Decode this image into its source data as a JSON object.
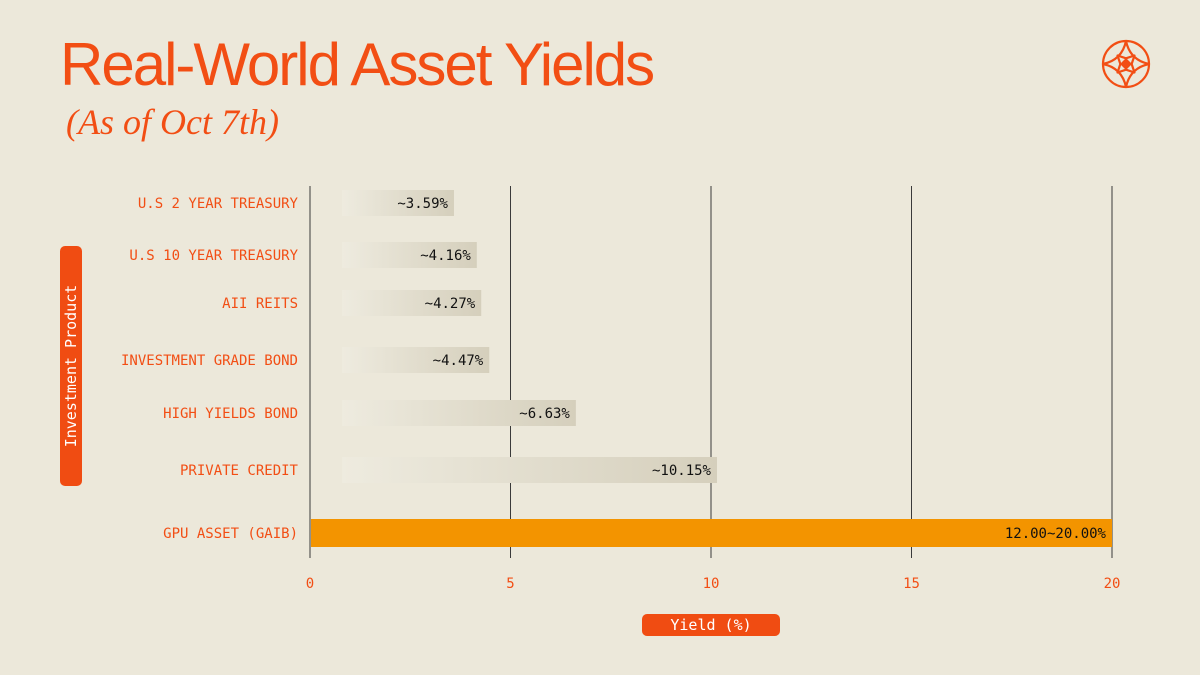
{
  "colors": {
    "background": "#ece8da",
    "accent": "#f24e14",
    "highlight_bar": "#f39400",
    "bar_start": "#eeebdf",
    "bar_end": "#d5cfbc",
    "grid": "#3a3a3a",
    "logo": "#f24e14"
  },
  "logo": {
    "icon": "compass-star-icon"
  },
  "chart_data": {
    "type": "bar",
    "orientation": "horizontal",
    "title": "Real-World Asset Yields",
    "subtitle": "(As of Oct 7th)",
    "xlabel": "Yield (%)",
    "ylabel": "Investment Product",
    "xlim": [
      0,
      20
    ],
    "xticks": [
      0,
      5,
      10,
      15,
      20
    ],
    "grid": "vertical",
    "categories": [
      "U.S 2 YEAR TREASURY",
      "U.S 10 YEAR TREASURY",
      "AII REITS",
      "INVESTMENT GRADE BOND",
      "HIGH YIELDS BOND",
      "PRIVATE CREDIT",
      "GPU ASSET (GAIB)"
    ],
    "values": [
      3.59,
      4.16,
      4.27,
      4.47,
      6.63,
      10.15,
      20.0
    ],
    "range_min": [
      null,
      null,
      null,
      null,
      null,
      null,
      12.0
    ],
    "value_labels": [
      "~3.59%",
      "~4.16%",
      "~4.27%",
      "~4.47%",
      "~6.63%",
      "~10.15%",
      "12.00~20.00%"
    ],
    "highlight_index": 6
  }
}
